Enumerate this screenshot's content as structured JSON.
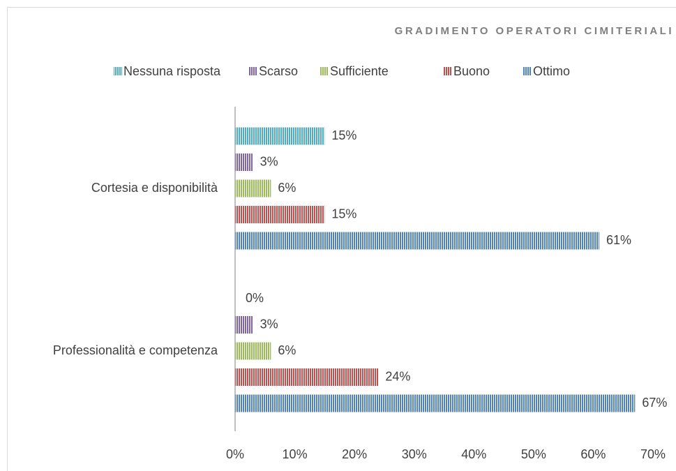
{
  "chart_data": {
    "type": "barh",
    "title": "GRADIMENTO OPERATORI CIMITERIALI",
    "categories": [
      "Cortesia e disponibilità",
      "Professionalità e competenza"
    ],
    "series": [
      {
        "name": "Nessuna risposta",
        "color": "#4bacc6",
        "values": [
          15,
          0
        ],
        "value_labels": [
          "15%",
          "0%"
        ]
      },
      {
        "name": "Scarso",
        "color": "#8064a2",
        "values": [
          3,
          3
        ],
        "value_labels": [
          "3%",
          "3%"
        ]
      },
      {
        "name": "Sufficiente",
        "color": "#9bbb59",
        "values": [
          6,
          6
        ],
        "value_labels": [
          "6%",
          "6%"
        ]
      },
      {
        "name": "Buono",
        "color": "#c0504d",
        "values": [
          15,
          24
        ],
        "value_labels": [
          "15%",
          "24%"
        ]
      },
      {
        "name": "Ottimo",
        "color": "#4f81bd",
        "values": [
          61,
          67
        ],
        "value_labels": [
          "61%",
          "67%"
        ]
      }
    ],
    "xlim": [
      0,
      70
    ],
    "xticks": [
      {
        "value": 0,
        "label": "0%"
      },
      {
        "value": 10,
        "label": "10%"
      },
      {
        "value": 20,
        "label": "20%"
      },
      {
        "value": 30,
        "label": "30%"
      },
      {
        "value": 40,
        "label": "40%"
      },
      {
        "value": 50,
        "label": "50%"
      },
      {
        "value": 60,
        "label": "60%"
      },
      {
        "value": 70,
        "label": "70%"
      }
    ],
    "legend": "top",
    "grid": false
  }
}
